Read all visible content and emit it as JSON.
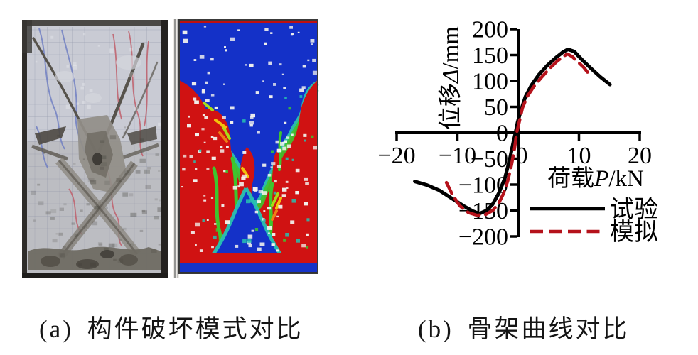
{
  "figure": {
    "caption_a": "(a) 构件破坏模式对比",
    "caption_b": "(b) 骨架曲线对比"
  },
  "chart_data": {
    "type": "line",
    "title": "",
    "xlabel": "荷载P/kN",
    "ylabel": "位移Δ/mm",
    "xlim": [
      -20,
      20
    ],
    "ylim": [
      -200,
      200
    ],
    "x_ticks": [
      -20,
      -10,
      0,
      10,
      20
    ],
    "y_ticks": [
      200,
      150,
      100,
      50,
      0,
      -50,
      -100,
      -150,
      -200
    ],
    "grid": false,
    "legend_position": "inside lower right",
    "series": [
      {
        "name": "试验",
        "color": "#000000",
        "style": "solid",
        "points": [
          [
            -17.0,
            -94
          ],
          [
            -15.0,
            -101
          ],
          [
            -13.0,
            -111
          ],
          [
            -11.0,
            -126
          ],
          [
            -9.0,
            -141
          ],
          [
            -7.5,
            -151
          ],
          [
            -6.4,
            -156
          ],
          [
            -5.2,
            -150
          ],
          [
            -4.2,
            -138
          ],
          [
            -3.2,
            -117
          ],
          [
            -2.2,
            -88
          ],
          [
            -1.4,
            -52
          ],
          [
            -0.8,
            -18
          ],
          [
            -0.45,
            0
          ],
          [
            -0.1,
            20
          ],
          [
            0.5,
            45
          ],
          [
            1.2,
            70
          ],
          [
            2.2,
            92
          ],
          [
            3.4,
            112
          ],
          [
            4.8,
            130
          ],
          [
            6.2,
            145
          ],
          [
            7.4,
            156
          ],
          [
            8.2,
            161
          ],
          [
            9.2,
            157
          ],
          [
            10.5,
            141
          ],
          [
            12.0,
            124
          ],
          [
            13.5,
            108
          ],
          [
            15.1,
            93
          ]
        ]
      },
      {
        "name": "模拟",
        "color": "#b5121b",
        "style": "dashed",
        "points": [
          [
            -11.8,
            -96
          ],
          [
            -10.8,
            -120
          ],
          [
            -9.6,
            -141
          ],
          [
            -8.2,
            -154
          ],
          [
            -6.8,
            -159
          ],
          [
            -5.4,
            -158
          ],
          [
            -4.2,
            -150
          ],
          [
            -3.2,
            -136
          ],
          [
            -2.4,
            -117
          ],
          [
            -1.7,
            -92
          ],
          [
            -1.1,
            -62
          ],
          [
            -0.6,
            -30
          ],
          [
            -0.25,
            0
          ],
          [
            0.2,
            22
          ],
          [
            0.7,
            48
          ],
          [
            1.5,
            70
          ],
          [
            2.5,
            88
          ],
          [
            3.7,
            105
          ],
          [
            5.0,
            122
          ],
          [
            6.4,
            138
          ],
          [
            7.5,
            148
          ],
          [
            8.1,
            152
          ],
          [
            8.9,
            147
          ],
          [
            9.9,
            136
          ],
          [
            10.8,
            126
          ],
          [
            11.4,
            117
          ]
        ]
      }
    ]
  },
  "colors": {
    "test_line": "#000000",
    "simulation_line": "#b5121b",
    "contour_palette": [
      "#1431c8",
      "#27c2b2",
      "#3ec52e",
      "#a8dc18",
      "#f3c10c",
      "#ee7f15",
      "#d01212"
    ]
  }
}
